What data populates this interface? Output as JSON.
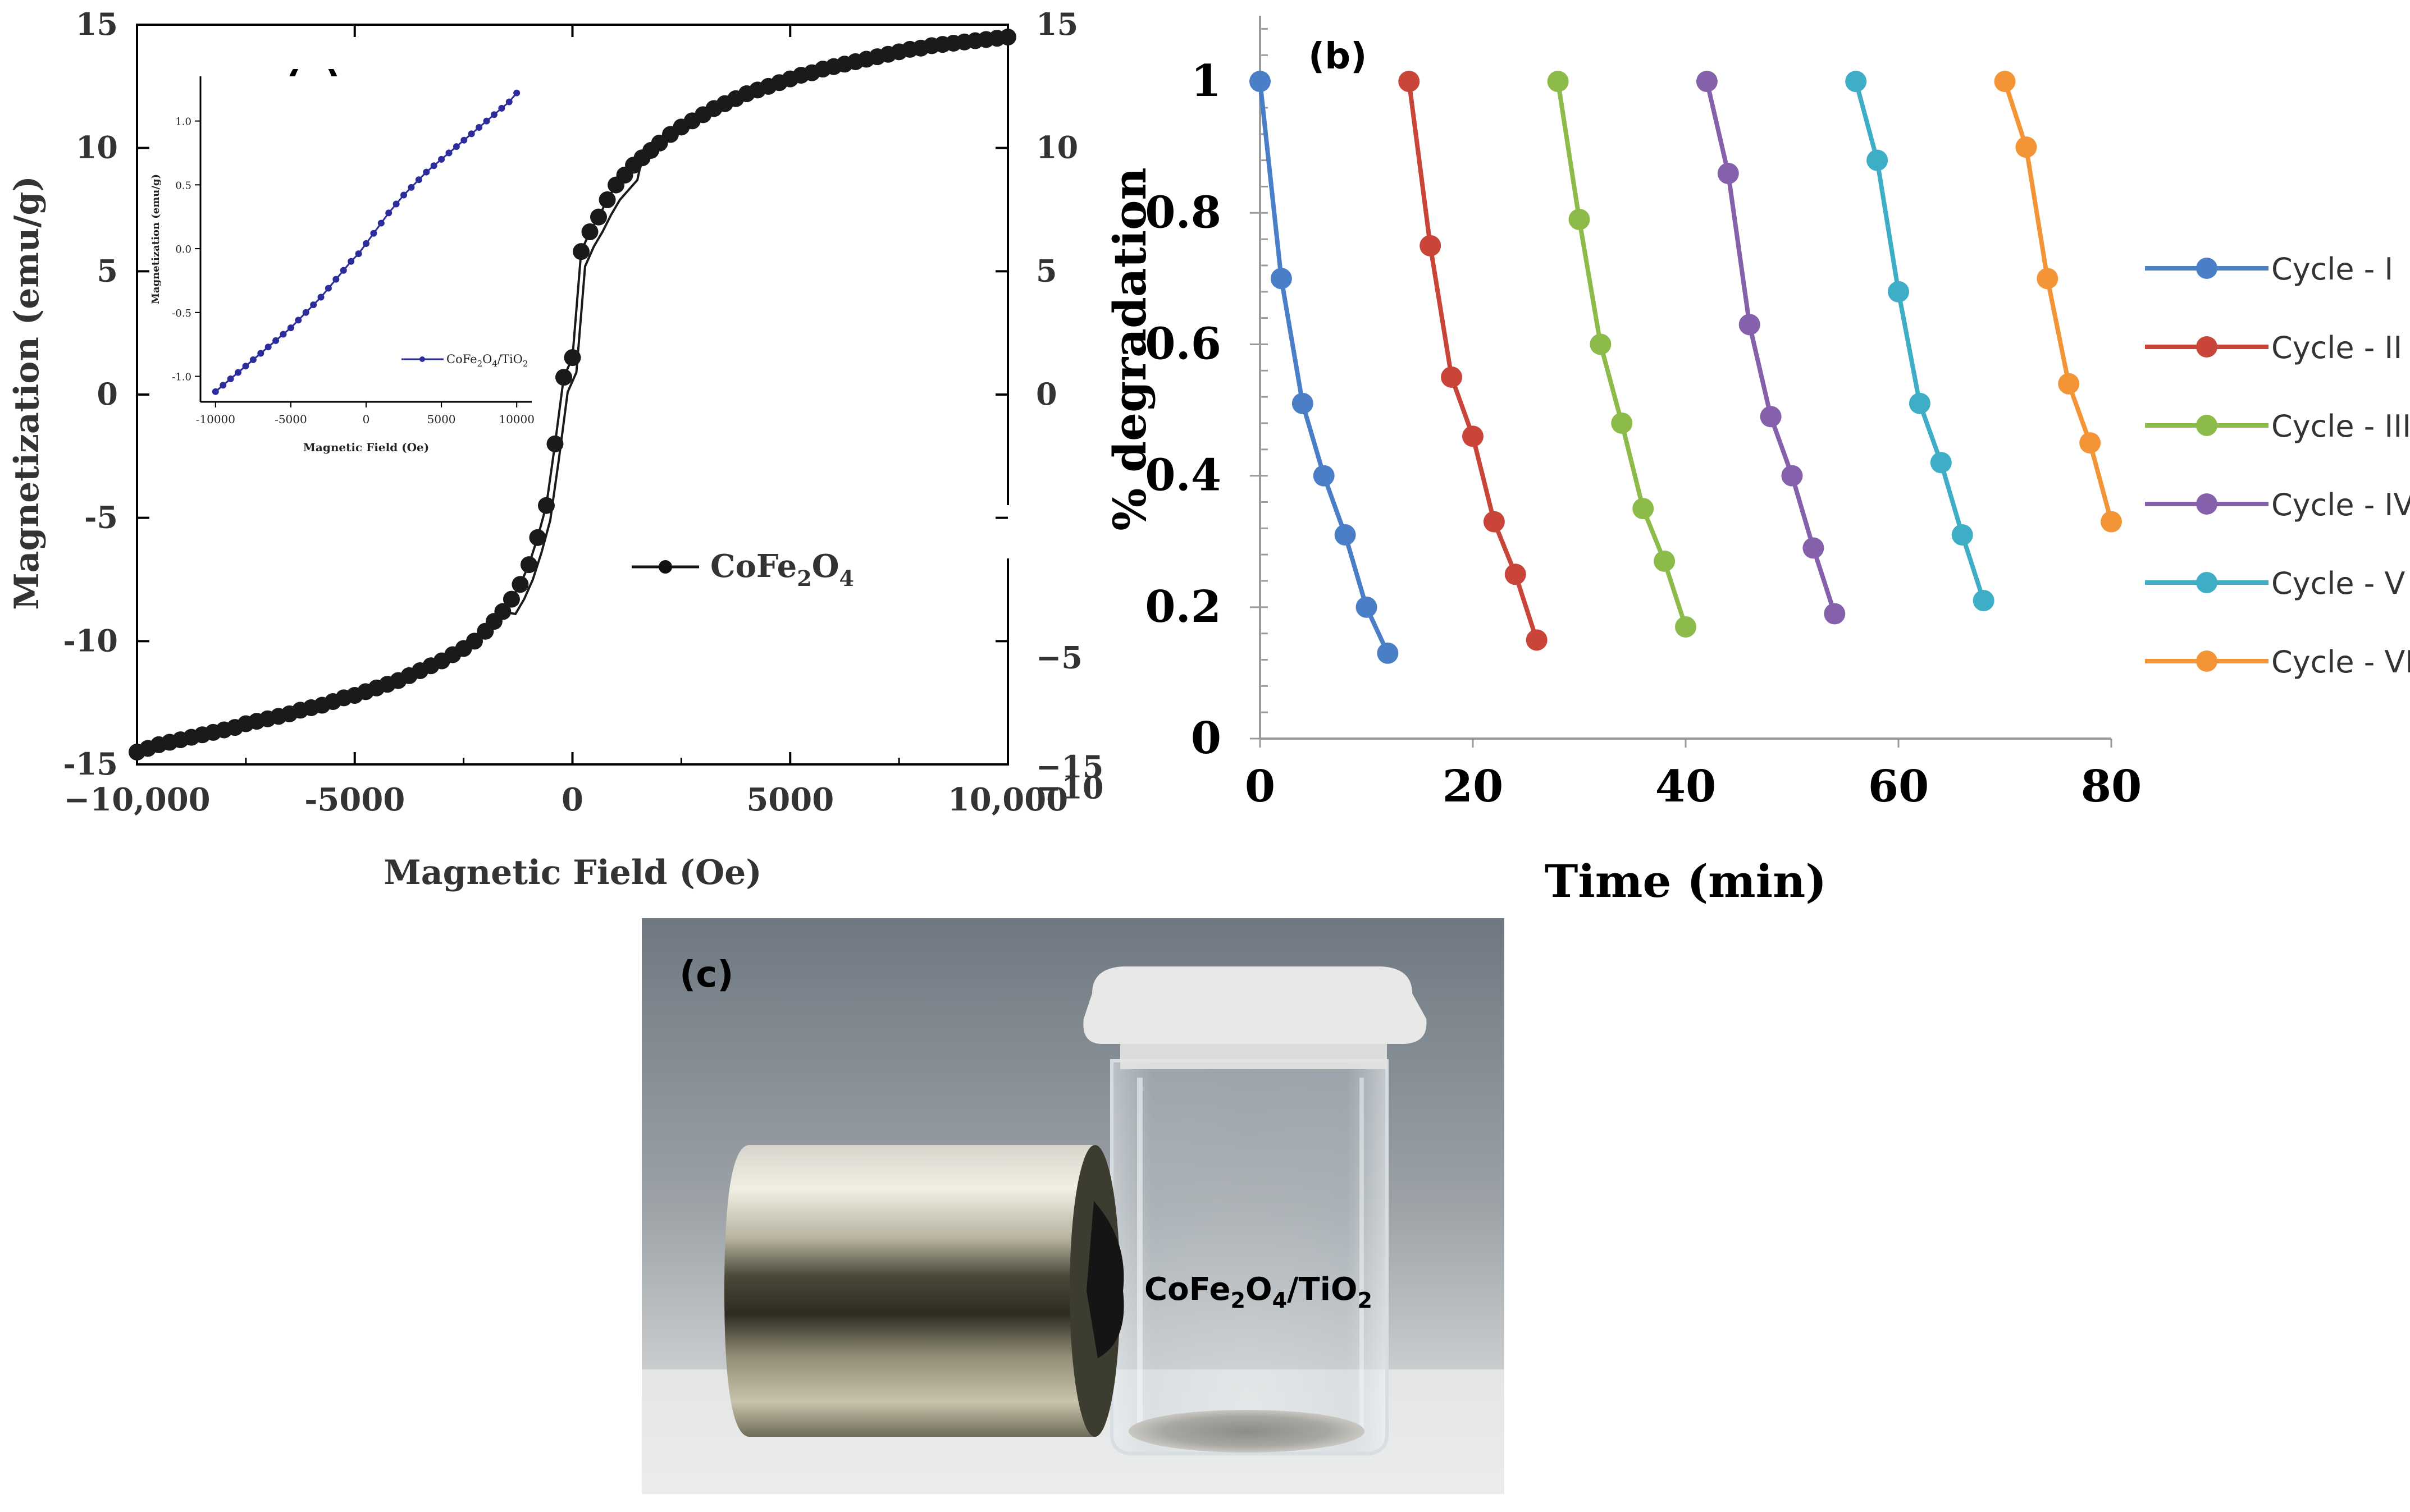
{
  "panel_a": {
    "label": "(a)",
    "chart_data": {
      "type": "scatter",
      "title": "",
      "xlabel": "Magnetic Field (Oe)",
      "ylabel": "Magnetization (emu/g)",
      "xlim": [
        -10000,
        10000
      ],
      "ylim": [
        -15,
        15
      ],
      "x_ticks": [
        "−10,000",
        "-5000",
        "0",
        "5000",
        "10,000"
      ],
      "x_tick_values": [
        -10000,
        -5000,
        0,
        5000,
        10000
      ],
      "y_ticks_left": [
        "15",
        "10",
        "5",
        "0",
        "-5",
        "-10",
        "-15"
      ],
      "y_tick_values_left": [
        15,
        10,
        5,
        0,
        -5,
        -10,
        -15
      ],
      "y_ticks_right": [
        "15",
        "10",
        "5",
        "0",
        "−5",
        "−10",
        "−15"
      ],
      "y_tick_values_right": [
        15,
        10,
        5,
        0,
        -5,
        -10,
        -15
      ],
      "legend": {
        "formula_prefix": "CoFe",
        "sub1": "2",
        "mid": "O",
        "sub2": "4",
        "position": "center-right"
      },
      "series": [
        {
          "name": "CoFe2O4",
          "color": "#1a1a1a",
          "x": [
            -10000,
            -9750,
            -9500,
            -9250,
            -9000,
            -8750,
            -8500,
            -8250,
            -8000,
            -7750,
            -7500,
            -7250,
            -7000,
            -6750,
            -6500,
            -6250,
            -6000,
            -5750,
            -5500,
            -5250,
            -5000,
            -4750,
            -4500,
            -4250,
            -4000,
            -3750,
            -3500,
            -3250,
            -3000,
            -2750,
            -2500,
            -2250,
            -2000,
            -1800,
            -1600,
            -1400,
            -1200,
            -1000,
            -800,
            -600,
            -400,
            -200,
            0,
            200,
            400,
            600,
            800,
            1000,
            1200,
            1400,
            1600,
            1800,
            2000,
            2250,
            2500,
            2750,
            3000,
            3250,
            3500,
            3750,
            4000,
            4250,
            4500,
            4750,
            5000,
            5250,
            5500,
            5750,
            6000,
            6250,
            6500,
            6750,
            7000,
            7250,
            7500,
            7750,
            8000,
            8250,
            8500,
            8750,
            9000,
            9250,
            9500,
            9750,
            10000
          ],
          "y": [
            -14.5,
            -14.35,
            -14.2,
            -14.1,
            -14.0,
            -13.9,
            -13.8,
            -13.7,
            -13.6,
            -13.5,
            -13.35,
            -13.25,
            -13.15,
            -13.05,
            -12.95,
            -12.8,
            -12.7,
            -12.6,
            -12.45,
            -12.3,
            -12.2,
            -12.05,
            -11.9,
            -11.75,
            -11.6,
            -11.4,
            -11.2,
            -11.0,
            -10.8,
            -10.55,
            -10.3,
            -10.0,
            -9.6,
            -9.2,
            -8.8,
            -8.3,
            -7.7,
            -6.9,
            -5.8,
            -4.5,
            -2.0,
            0.7,
            1.5,
            5.8,
            6.6,
            7.2,
            7.9,
            8.5,
            8.9,
            9.3,
            9.6,
            9.9,
            10.2,
            10.55,
            10.85,
            11.1,
            11.35,
            11.6,
            11.8,
            12.0,
            12.2,
            12.35,
            12.5,
            12.65,
            12.8,
            12.95,
            13.05,
            13.2,
            13.3,
            13.4,
            13.5,
            13.6,
            13.7,
            13.8,
            13.9,
            14.0,
            14.05,
            14.15,
            14.2,
            14.25,
            14.3,
            14.35,
            14.4,
            14.45,
            14.5
          ]
        }
      ],
      "inset": {
        "xlabel": "Magnetic Field (Oe)",
        "ylabel": "Magnetization (emu/g)",
        "xlim": [
          -11000,
          11000
        ],
        "ylim": [
          -1.2,
          1.35
        ],
        "x_ticks": [
          "-10000",
          "-5000",
          "0",
          "5000",
          "10000"
        ],
        "x_tick_values": [
          -10000,
          -5000,
          0,
          5000,
          10000
        ],
        "y_ticks": [
          "1.0",
          "0.5",
          "0.0",
          "-0.5",
          "-1.0"
        ],
        "y_tick_values": [
          1.0,
          0.5,
          0.0,
          -0.5,
          -1.0
        ],
        "legend": {
          "prefix": "CoFe",
          "sub1": "2",
          "mid": "O",
          "sub2": "4",
          "suffix": "/TiO",
          "sub3": "2"
        },
        "series": [
          {
            "name": "CoFe2O4/TiO2",
            "color": "#2c2c9c",
            "x": [
              -10000,
              -9500,
              -9000,
              -8500,
              -8000,
              -7500,
              -7000,
              -6500,
              -6000,
              -5500,
              -5000,
              -4500,
              -4000,
              -3500,
              -3000,
              -2500,
              -2000,
              -1500,
              -1000,
              -500,
              0,
              500,
              1000,
              1500,
              2000,
              2500,
              3000,
              3500,
              4000,
              4500,
              5000,
              5500,
              6000,
              6500,
              7000,
              7500,
              8000,
              8500,
              9000,
              9500,
              10000
            ],
            "y": [
              -1.12,
              -1.07,
              -1.02,
              -0.97,
              -0.92,
              -0.87,
              -0.82,
              -0.77,
              -0.72,
              -0.67,
              -0.62,
              -0.56,
              -0.5,
              -0.44,
              -0.38,
              -0.31,
              -0.24,
              -0.17,
              -0.1,
              -0.04,
              0.04,
              0.12,
              0.2,
              0.28,
              0.35,
              0.42,
              0.48,
              0.54,
              0.6,
              0.65,
              0.7,
              0.75,
              0.8,
              0.85,
              0.9,
              0.95,
              1.0,
              1.05,
              1.1,
              1.15,
              1.22
            ]
          }
        ]
      }
    }
  },
  "panel_b": {
    "label": "(b)",
    "chart_data": {
      "type": "line",
      "title": "",
      "xlabel": "Time (min)",
      "ylabel": "% degradation",
      "xlim": [
        0,
        80
      ],
      "ylim": [
        0,
        1.1
      ],
      "x_ticks": [
        "0",
        "20",
        "40",
        "60",
        "80"
      ],
      "x_tick_values": [
        0,
        20,
        40,
        60,
        80
      ],
      "y_ticks": [
        "0",
        "0.2",
        "0.4",
        "0.6",
        "0.8",
        "1"
      ],
      "y_tick_values": [
        0,
        0.2,
        0.4,
        0.6,
        0.8,
        1
      ],
      "legend_position": "right",
      "series": [
        {
          "name": "Cycle - I",
          "color": "#4a7fc8",
          "x": [
            0,
            2,
            4,
            6,
            8,
            10,
            12
          ],
          "y": [
            1.0,
            0.7,
            0.51,
            0.4,
            0.31,
            0.2,
            0.13
          ]
        },
        {
          "name": "Cycle - II",
          "color": "#c9453a",
          "x": [
            14,
            16,
            18,
            20,
            22,
            24,
            26
          ],
          "y": [
            1.0,
            0.75,
            0.55,
            0.46,
            0.33,
            0.25,
            0.15
          ]
        },
        {
          "name": "Cycle - III",
          "color": "#8cbb4a",
          "x": [
            28,
            30,
            32,
            34,
            36,
            38,
            40
          ],
          "y": [
            1.0,
            0.79,
            0.6,
            0.48,
            0.35,
            0.27,
            0.17
          ]
        },
        {
          "name": "Cycle - IV",
          "color": "#8560ab",
          "x": [
            42,
            44,
            46,
            48,
            50,
            52,
            54
          ],
          "y": [
            1.0,
            0.86,
            0.63,
            0.49,
            0.4,
            0.29,
            0.19
          ]
        },
        {
          "name": "Cycle - V",
          "color": "#3eadc6",
          "x": [
            56,
            58,
            60,
            62,
            64,
            66,
            68
          ],
          "y": [
            1.0,
            0.88,
            0.68,
            0.51,
            0.42,
            0.31,
            0.21
          ]
        },
        {
          "name": "Cycle - VI",
          "color": "#f39437",
          "x": [
            70,
            72,
            74,
            76,
            78,
            80
          ],
          "y": [
            1.0,
            0.9,
            0.7,
            0.54,
            0.45,
            0.33
          ]
        }
      ]
    }
  },
  "panel_c": {
    "label": "(c)",
    "photo_label": {
      "prefix": "CoFe",
      "sub1": "2",
      "mid": "O",
      "sub2": "4",
      "suffix": "/TiO",
      "sub3": "2"
    }
  }
}
